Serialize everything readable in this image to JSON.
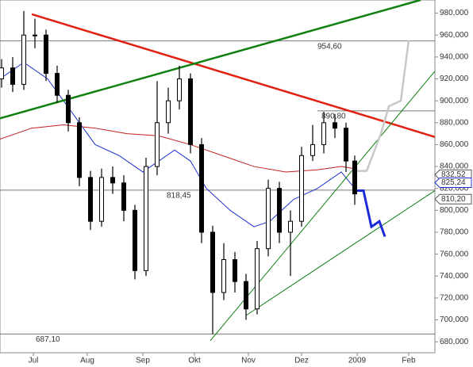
{
  "chart_data": {
    "type": "candlestick",
    "x": [
      2,
      16,
      30,
      44,
      58,
      72,
      86,
      100,
      114,
      128,
      142,
      156,
      170,
      184,
      198,
      212,
      226,
      240,
      254,
      268,
      282,
      296,
      310,
      324,
      338,
      352,
      366,
      380,
      394,
      408,
      422,
      436,
      447
    ],
    "open": [
      920,
      930,
      915,
      960,
      960,
      925,
      905,
      880,
      830,
      790,
      830,
      825,
      800,
      745,
      840,
      880,
      900,
      920,
      860,
      780,
      725,
      755,
      735,
      710,
      765,
      820,
      780,
      790,
      850,
      860,
      880,
      875,
      845
    ],
    "high": [
      938,
      940,
      982,
      975,
      965,
      932,
      910,
      885,
      836,
      838,
      840,
      832,
      805,
      848,
      918,
      912,
      932,
      925,
      866,
      786,
      770,
      762,
      742,
      772,
      828,
      826,
      800,
      858,
      878,
      890,
      888,
      880,
      850
    ],
    "low": [
      912,
      908,
      910,
      948,
      918,
      898,
      872,
      822,
      782,
      785,
      815,
      790,
      737,
      740,
      832,
      870,
      892,
      852,
      770,
      687,
      718,
      725,
      700,
      705,
      758,
      770,
      740,
      785,
      845,
      852,
      866,
      835,
      805
    ],
    "close": [
      930,
      915,
      960,
      960,
      925,
      905,
      880,
      830,
      790,
      830,
      825,
      800,
      745,
      840,
      880,
      900,
      920,
      860,
      780,
      725,
      755,
      735,
      710,
      765,
      820,
      780,
      790,
      850,
      860,
      880,
      875,
      845,
      815
    ],
    "xlim": [
      0,
      548
    ],
    "ylim": [
      670,
      992
    ],
    "yticks": [
      {
        "value": 680,
        "label": "680,000"
      },
      {
        "value": 700,
        "label": "700,000"
      },
      {
        "value": 720,
        "label": "720,000"
      },
      {
        "value": 740,
        "label": "740,000"
      },
      {
        "value": 760,
        "label": "760,000"
      },
      {
        "value": 780,
        "label": "780,000"
      },
      {
        "value": 800,
        "label": "800,000"
      },
      {
        "value": 820,
        "label": "820,000"
      },
      {
        "value": 840,
        "label": "840,000"
      },
      {
        "value": 860,
        "label": "860,000"
      },
      {
        "value": 880,
        "label": "880,000"
      },
      {
        "value": 900,
        "label": "900,000"
      },
      {
        "value": 920,
        "label": "920,000"
      },
      {
        "value": 940,
        "label": "940,000"
      },
      {
        "value": 960,
        "label": "960,000"
      },
      {
        "value": 980,
        "label": "980,000"
      }
    ],
    "xticks": [
      {
        "value": 42,
        "label": "Jul"
      },
      {
        "value": 110,
        "label": "Aug"
      },
      {
        "value": 180,
        "label": "Sep"
      },
      {
        "value": 245,
        "label": "Okt"
      },
      {
        "value": 313,
        "label": "Nov"
      },
      {
        "value": 380,
        "label": "Dez"
      },
      {
        "value": 450,
        "label": "2009"
      },
      {
        "value": 515,
        "label": "Feb"
      }
    ],
    "overlays": [
      {
        "color": "#2030d0",
        "width": 1,
        "x": [
          0,
          30,
          60,
          90,
          120,
          150,
          180,
          200,
          220,
          240,
          260,
          290,
          320,
          340,
          370,
          400,
          430,
          447
        ],
        "values": [
          920,
          935,
          920,
          890,
          860,
          850,
          835,
          845,
          855,
          845,
          820,
          800,
          785,
          790,
          810,
          820,
          835,
          820
        ]
      },
      {
        "color": "#c02020",
        "width": 1,
        "x": [
          0,
          40,
          80,
          120,
          160,
          200,
          240,
          280,
          320,
          360,
          400,
          430,
          447
        ],
        "values": [
          865,
          875,
          878,
          875,
          870,
          868,
          860,
          850,
          840,
          835,
          837,
          840,
          838
        ]
      },
      {
        "color": "#e02010",
        "width": 2.5,
        "x": [
          40,
          548
        ],
        "values": [
          979,
          867
        ]
      },
      {
        "color": "#108010",
        "width": 2.5,
        "x": [
          0,
          530
        ],
        "values": [
          884,
          992
        ]
      },
      {
        "color": "#108010",
        "width": 1,
        "x": [
          265,
          548
        ],
        "values": [
          681,
          927
        ]
      },
      {
        "color": "#108010",
        "width": 1,
        "x": [
          310,
          548
        ],
        "values": [
          704,
          818
        ]
      },
      {
        "color": "#1a2ad8",
        "width": 3,
        "x": [
          447,
          458,
          468,
          478,
          485
        ],
        "values": [
          818,
          818,
          785,
          790,
          776
        ]
      },
      {
        "color": "#c8c8c8",
        "width": 2.5,
        "x": [
          447,
          462,
          480,
          490,
          505,
          515
        ],
        "values": [
          836,
          836,
          870,
          895,
          900,
          955
        ]
      }
    ],
    "levels": [
      {
        "value": 954.6,
        "label": "954,60",
        "start": 0,
        "label_x": 400
      },
      {
        "value": 890.8,
        "label": "890,80",
        "start": 400,
        "label_x": 405
      },
      {
        "value": 818.45,
        "label": "818,45",
        "start": 0,
        "label_x": 210
      },
      {
        "value": 687.1,
        "label": "687,10",
        "start": 0,
        "label_x": 45
      }
    ],
    "price_boxes": [
      {
        "value": 832.52,
        "label": "832,52",
        "color": "#555555"
      },
      {
        "value": 825.24,
        "label": "825,24",
        "color": "#2030d0"
      },
      {
        "value": 810.2,
        "label": "810,20",
        "color": "#555555"
      }
    ]
  }
}
